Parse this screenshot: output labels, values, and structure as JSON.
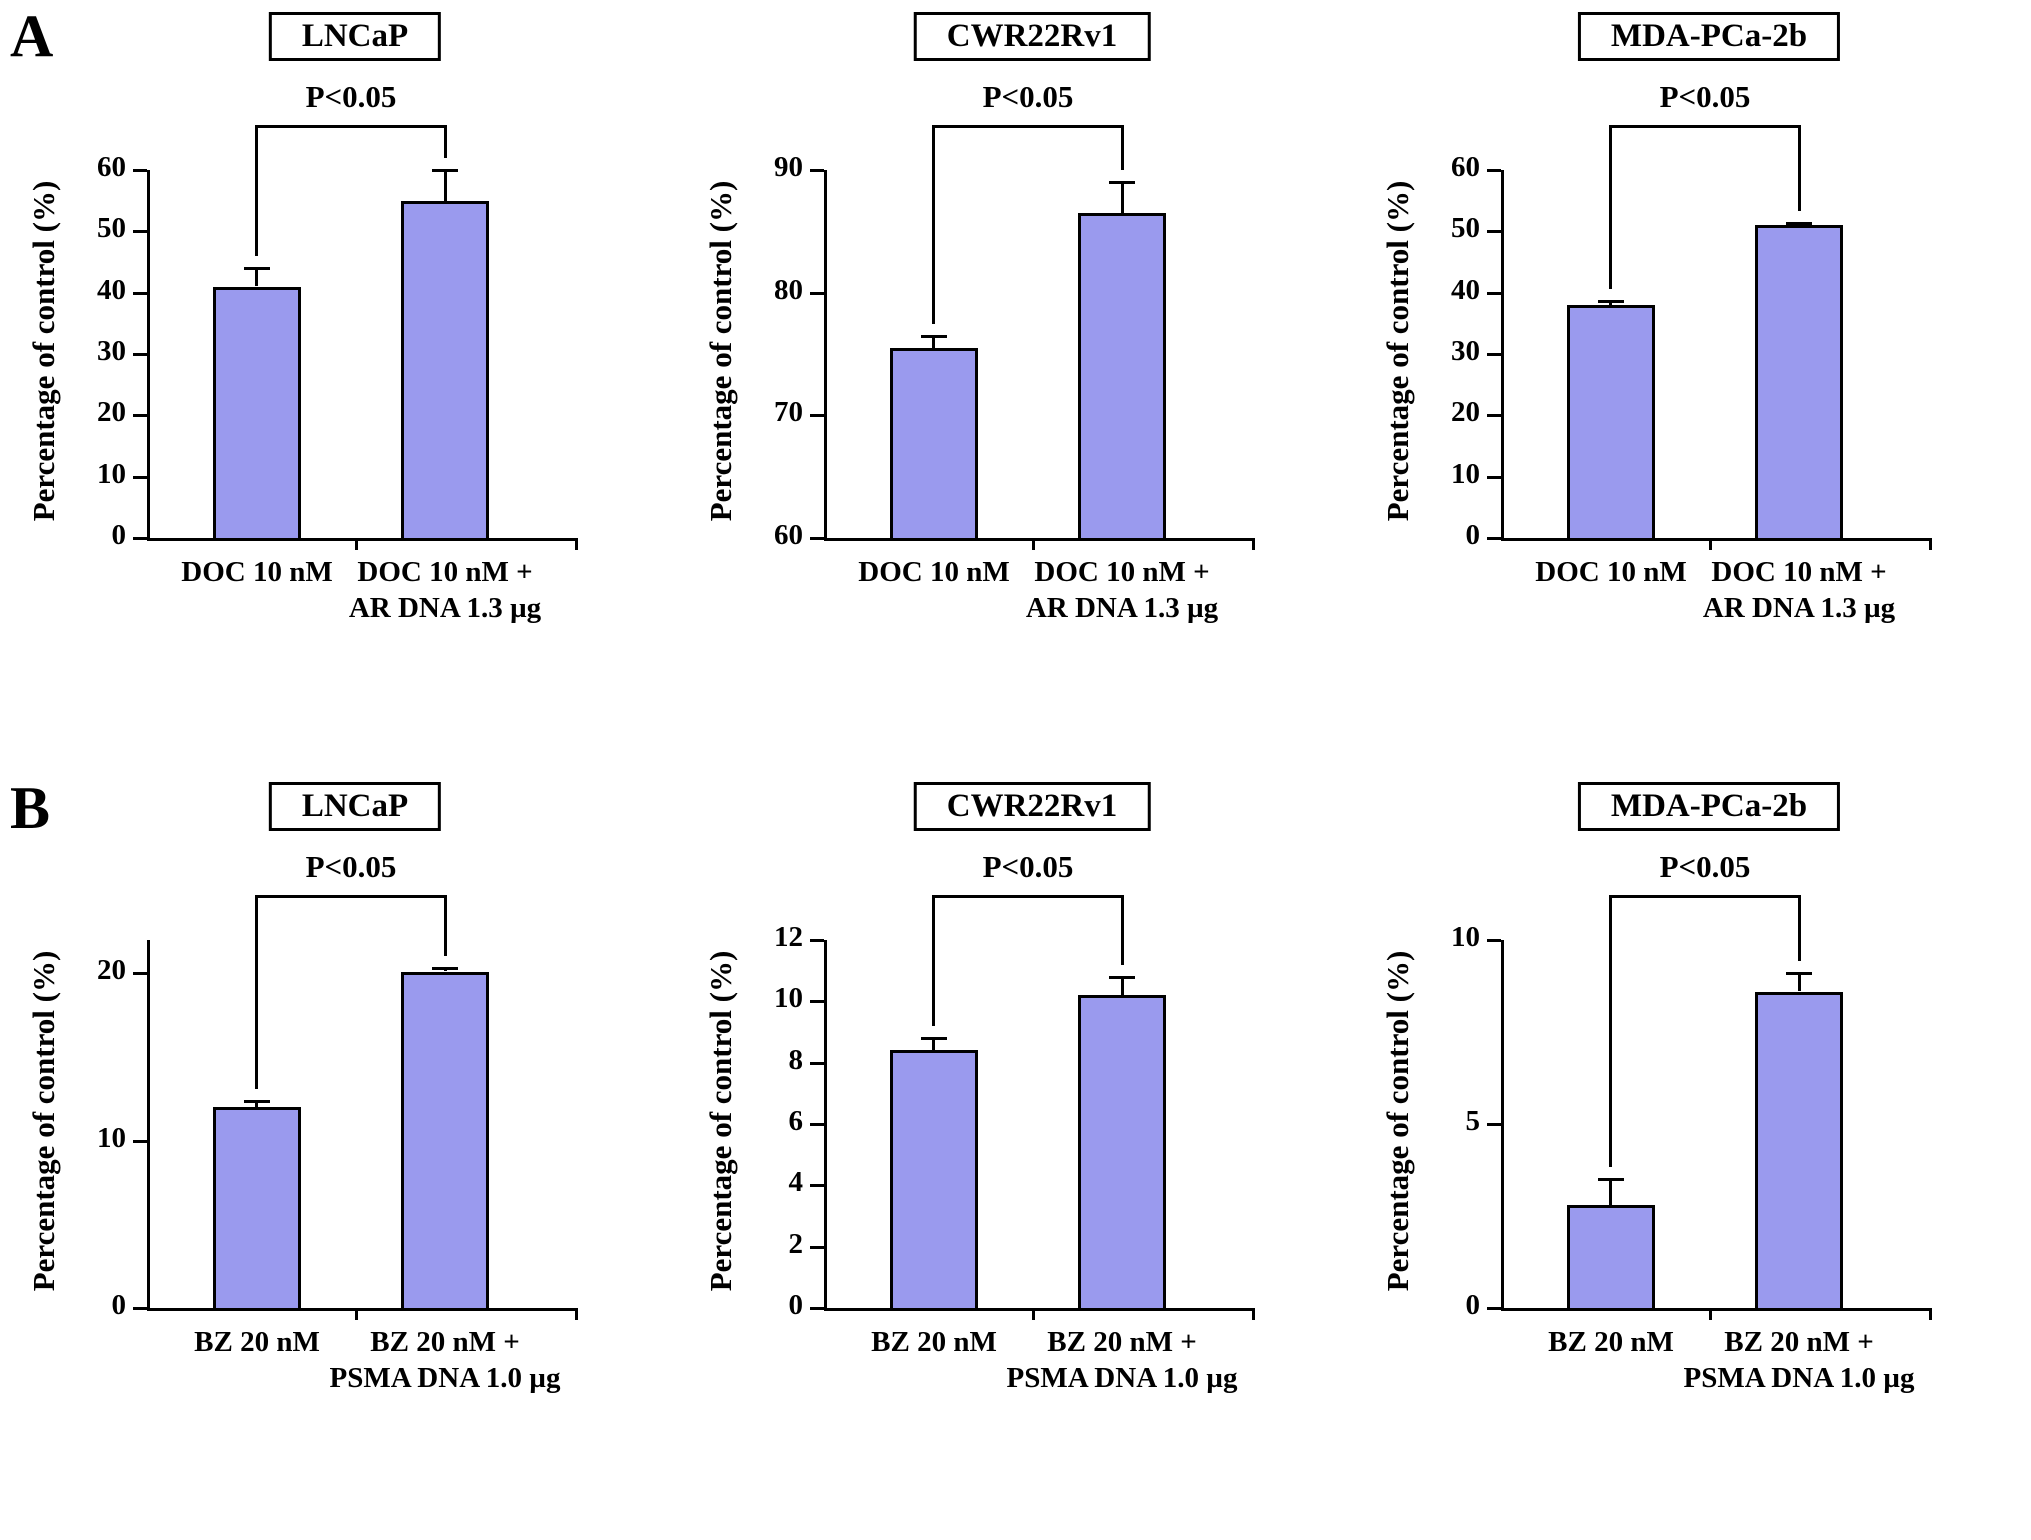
{
  "figure": {
    "panels": [
      {
        "label": "A"
      },
      {
        "label": "B"
      }
    ],
    "bar_fill": "#9a9aee",
    "axis_color": "#000000"
  },
  "chart_data": [
    {
      "type": "bar",
      "panel": "A",
      "title": "LNCaP",
      "ylabel": "Percentage of control (%)",
      "ylim": [
        0,
        60
      ],
      "yticks": [
        0,
        10,
        20,
        30,
        40,
        50,
        60
      ],
      "categories": [
        "DOC 10 nM",
        "DOC 10 nM +\nAR DNA 1.3 µg"
      ],
      "values": [
        41,
        55
      ],
      "errors": [
        3,
        5
      ],
      "annotation": "P<0.05"
    },
    {
      "type": "bar",
      "panel": "A",
      "title": "CWR22Rv1",
      "ylabel": "Percentage of control (%)",
      "ylim": [
        60,
        90
      ],
      "yticks": [
        60,
        70,
        80,
        90
      ],
      "categories": [
        "DOC 10 nM",
        "DOC 10 nM +\nAR DNA 1.3 µg"
      ],
      "values": [
        75.5,
        86.5
      ],
      "errors": [
        1,
        2.5
      ],
      "annotation": "P<0.05"
    },
    {
      "type": "bar",
      "panel": "A",
      "title": "MDA-PCa-2b",
      "ylabel": "Percentage of control (%)",
      "ylim": [
        0,
        60
      ],
      "yticks": [
        0,
        10,
        20,
        30,
        40,
        50,
        60
      ],
      "categories": [
        "DOC 10 nM",
        "DOC 10 nM +\nAR DNA 1.3 µg"
      ],
      "values": [
        38,
        51
      ],
      "errors": [
        0.7,
        0.3
      ],
      "annotation": "P<0.05"
    },
    {
      "type": "bar",
      "panel": "B",
      "title": "LNCaP",
      "ylabel": "Percentage of control (%)",
      "ylim": [
        0,
        22
      ],
      "yticks": [
        0,
        10,
        20
      ],
      "categories": [
        "BZ 20 nM",
        "BZ 20 nM +\nPSMA DNA 1.0 µg"
      ],
      "values": [
        12,
        20.1
      ],
      "errors": [
        0.4,
        0.2
      ],
      "annotation": "P<0.05"
    },
    {
      "type": "bar",
      "panel": "B",
      "title": "CWR22Rv1",
      "ylabel": "Percentage of control (%)",
      "ylim": [
        0,
        12
      ],
      "yticks": [
        0,
        2,
        4,
        6,
        8,
        10,
        12
      ],
      "categories": [
        "BZ 20 nM",
        "BZ 20 nM +\nPSMA DNA 1.0 µg"
      ],
      "values": [
        8.4,
        10.2
      ],
      "errors": [
        0.4,
        0.6
      ],
      "annotation": "P<0.05"
    },
    {
      "type": "bar",
      "panel": "B",
      "title": "MDA-PCa-2b",
      "ylabel": "Percentage of control (%)",
      "ylim": [
        0,
        10
      ],
      "yticks": [
        0,
        5,
        10
      ],
      "categories": [
        "BZ 20 nM",
        "BZ 20 nM +\nPSMA DNA 1.0 µg"
      ],
      "values": [
        2.8,
        8.6
      ],
      "errors": [
        0.7,
        0.5
      ],
      "annotation": "P<0.05"
    }
  ]
}
